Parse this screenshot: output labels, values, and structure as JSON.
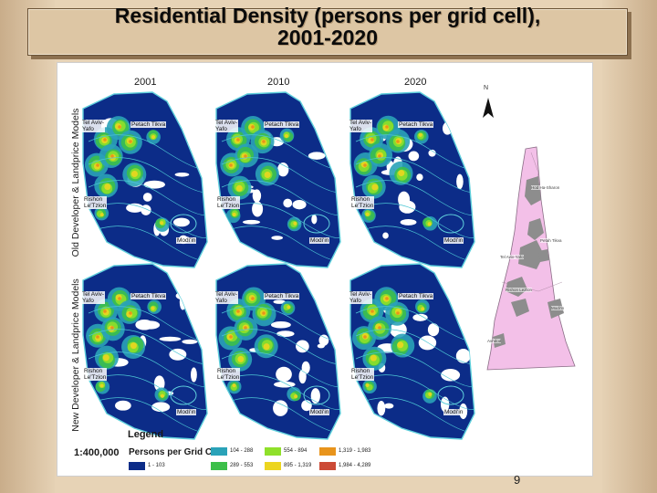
{
  "slide": {
    "title_line1": "Residential Density (persons per grid cell),",
    "title_line2": "2001-2020",
    "page_number": "9"
  },
  "figure": {
    "columns": [
      "2001",
      "2010",
      "2020"
    ],
    "rows": [
      "Old Developer & Landprice Models",
      "New Developer & Landprice Models"
    ],
    "city_labels": {
      "tel_aviv": "Tel Aviv-\nYafo",
      "petach_tikva": "Petach Tikva",
      "rishon": "Rishon\nLe'Tzion",
      "modiin": "Modi'in"
    },
    "north_label": "N",
    "inset_labels": [
      "Hod Ha-Sharon",
      "Tel Aviv-Yafo",
      "Petah Tikva",
      "Rishon LeZion",
      "Modi'in",
      "Ashdod"
    ],
    "scale": "1:400,000",
    "legend": {
      "title": "Legend",
      "heading": "Persons per Grid Cell",
      "classes": [
        {
          "label": "1 - 103",
          "color": "#0c2c88"
        },
        {
          "label": "104 - 288",
          "color": "#2aa2b8"
        },
        {
          "label": "289 - 553",
          "color": "#3cbf4a"
        },
        {
          "label": "554 - 894",
          "color": "#8fe02a"
        },
        {
          "label": "895 - 1,319",
          "color": "#ecd51f"
        },
        {
          "label": "1,319 - 1,983",
          "color": "#e8941c"
        },
        {
          "label": "1,984 - 4,289",
          "color": "#cc4a36"
        }
      ]
    }
  }
}
